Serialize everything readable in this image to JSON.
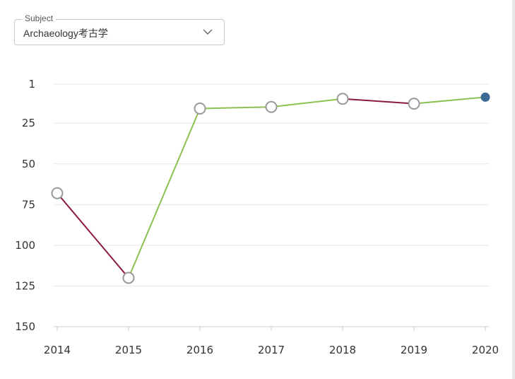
{
  "subject_select": {
    "legend": "Subject",
    "value": "Archaeology考古学",
    "icon": "chevron-down-icon"
  },
  "chart_data": {
    "type": "line",
    "title": "",
    "xlabel": "",
    "ylabel": "",
    "x": [
      "2014",
      "2015",
      "2016",
      "2017",
      "2018",
      "2019",
      "2020"
    ],
    "values": [
      68,
      120,
      16,
      15,
      10,
      13,
      9
    ],
    "y_ticks": [
      "1",
      "25",
      "50",
      "75",
      "100",
      "125",
      "150"
    ],
    "y_tick_values": [
      1,
      25,
      50,
      75,
      100,
      125,
      150
    ],
    "ylim": [
      1,
      150
    ],
    "y_inverted": true,
    "grid": true,
    "colors": {
      "worse": "#8b1a3a",
      "better": "#8cc152",
      "grid": "#e6e6e6",
      "axis": "#cccccc",
      "marker_stroke": "#999999",
      "marker_fill": "#ffffff",
      "current_marker": "#3d6a94"
    }
  }
}
